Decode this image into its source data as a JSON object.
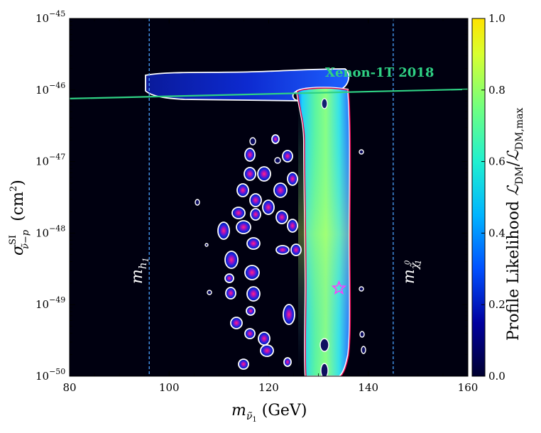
{
  "chart_data": {
    "type": "heatmap",
    "title": "",
    "xlabel": "m",
    "xlabel_sub": "ν̃",
    "xlabel_sub2": "1",
    "xlabel_unit": " (GeV)",
    "ylabel": "σ",
    "ylabel_sup": "SI",
    "ylabel_sub": "ν̃−p",
    "ylabel_unit": "(cm",
    "ylabel_unit_sup": "2",
    "ylabel_unit_close": ")",
    "xlim": [
      80,
      160
    ],
    "x_ticks": [
      80,
      100,
      120,
      140,
      160
    ],
    "x_tick_labels": [
      "80",
      "100",
      "120",
      "140",
      "160"
    ],
    "ylim_log10": [
      -50,
      -45
    ],
    "y_tick_exponents": [
      -50,
      -49,
      -48,
      -47,
      -46,
      -45
    ],
    "y_tick_base": "10",
    "y_tick_sup": [
      "−50",
      "−49",
      "−48",
      "−47",
      "−46",
      "−45"
    ],
    "colorbar": {
      "label": "Profile Likelihood ",
      "label_math": "ℒ",
      "label_sub1": "DM",
      "label_div": "/",
      "label_math2": "ℒ",
      "label_sub2": "DM,max",
      "range": [
        0.0,
        1.0
      ],
      "ticks": [
        0.0,
        0.2,
        0.4,
        0.6,
        0.8,
        1.0
      ],
      "tick_labels": [
        "0.0",
        "0.2",
        "0.4",
        "0.6",
        "0.8",
        "1.0"
      ],
      "colormap": [
        "#00003d",
        "#0000a0",
        "#0050ff",
        "#00c8ff",
        "#30ffb0",
        "#b0ff40",
        "#ffe300"
      ]
    },
    "vertical_lines": [
      {
        "x": 96,
        "label": "m",
        "label_sub": "h",
        "label_sub2": "1",
        "color": "#4aa3ff"
      },
      {
        "x": 145,
        "label": "m",
        "label_sub": "χ̃",
        "label_sub_sup": "0",
        "label_sub2": "1",
        "color": "#4aa3ff"
      }
    ],
    "limit_line": {
      "label": "Xenon-1T 2018",
      "color": "#2fd184",
      "points": [
        [
          80,
          -46.12
        ],
        [
          160,
          -45.99
        ]
      ]
    },
    "best_fit": {
      "x": 134.1,
      "y_log10": -48.77,
      "marker": "star",
      "color": "#ff3cff"
    },
    "grid": false,
    "legend": "none",
    "background_color": "#000010"
  }
}
